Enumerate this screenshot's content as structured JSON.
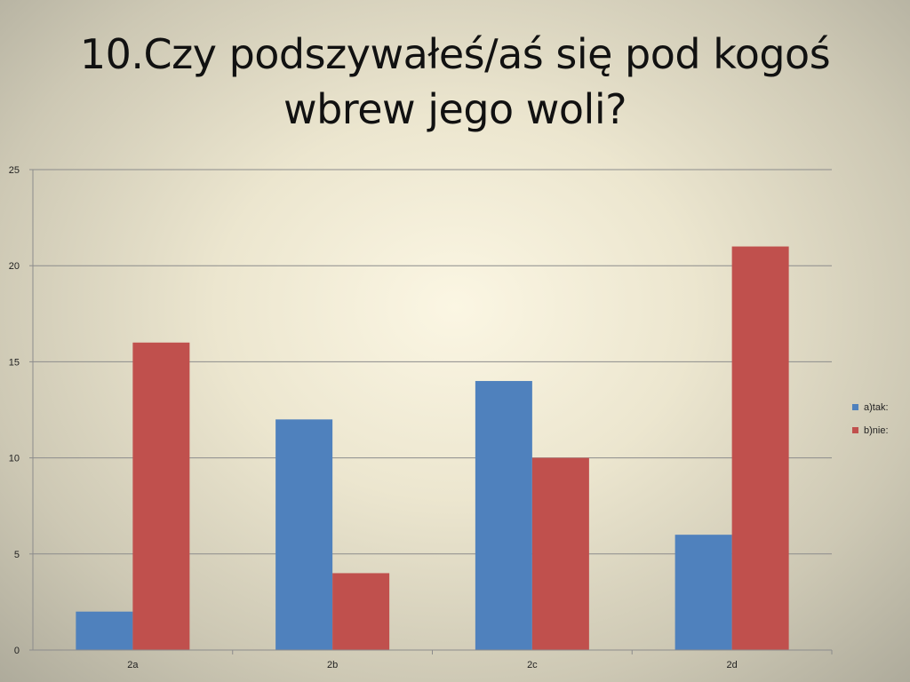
{
  "slide": {
    "title_line1": "10.Czy podszywałeś/aś się pod kogoś",
    "title_line2": "wbrew jego woli?"
  },
  "chart_data": {
    "type": "bar",
    "categories": [
      "2a",
      "2b",
      "2c",
      "2d"
    ],
    "series": [
      {
        "name": "a)tak:",
        "color": "#4f81bd",
        "values": [
          2,
          12,
          14,
          6
        ]
      },
      {
        "name": "b)nie:",
        "color": "#c0504d",
        "values": [
          16,
          4,
          10,
          21
        ]
      }
    ],
    "ylim": [
      0,
      25
    ],
    "yticks": [
      0,
      5,
      10,
      15,
      20,
      25
    ],
    "grid": true,
    "legend_position": "right",
    "gridline_color": "#8c8c8c"
  }
}
